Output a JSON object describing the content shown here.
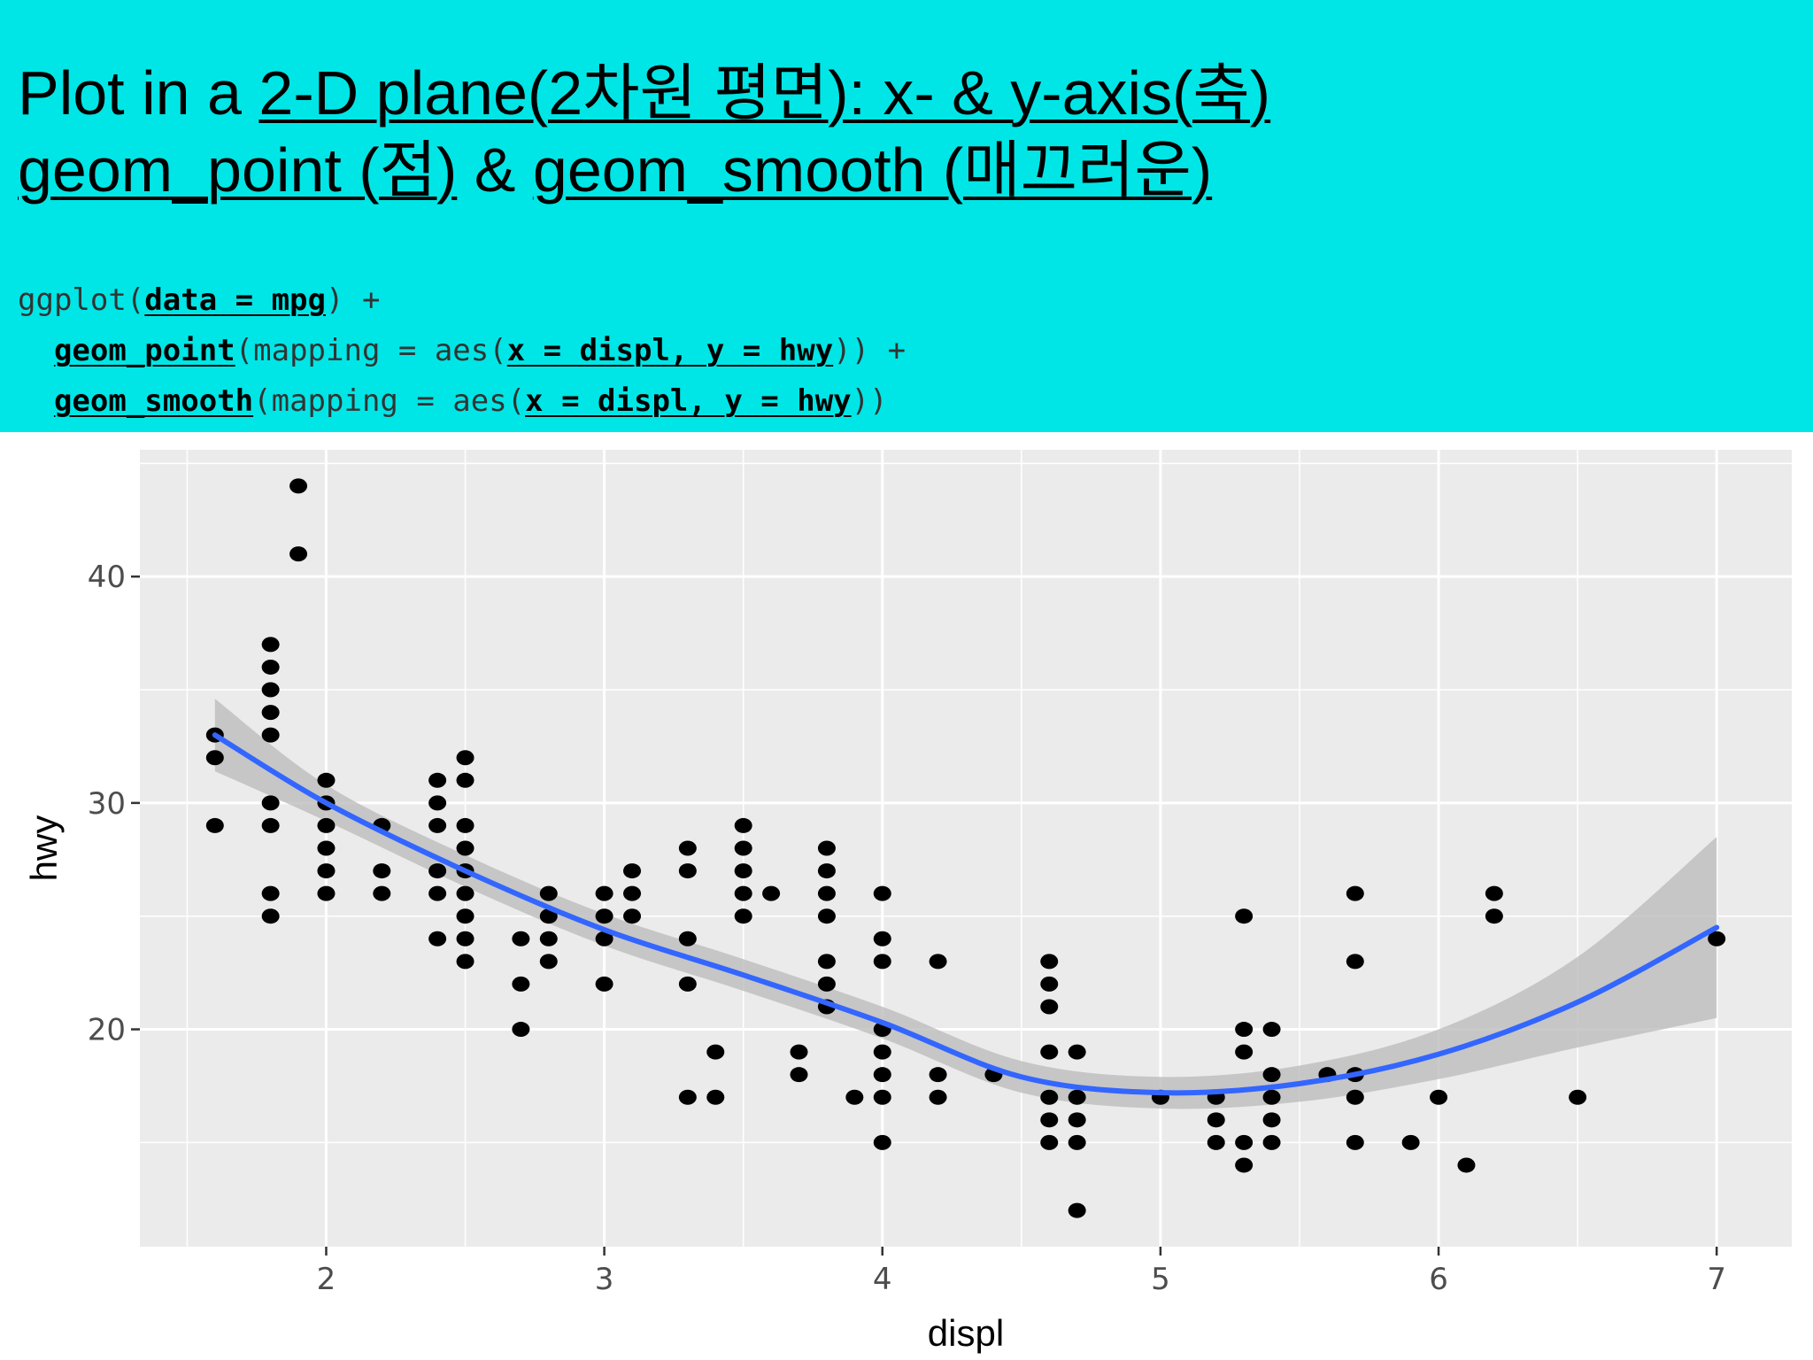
{
  "slide": {
    "title_line1": {
      "a": "Plot in a ",
      "b": "2-D plane(2차원 평면): x- & y-axis(축)"
    },
    "title_line2": {
      "a": "geom_point (점)",
      "b": " & ",
      "c": "geom_smooth (매끄러운)"
    },
    "code": {
      "l1a": "ggplot(",
      "l1b": "data = mpg",
      "l1c": ") +",
      "l2a": "  ",
      "l2b": "geom_point",
      "l2c": "(mapping = aes(",
      "l2d": "x = displ, y = hwy",
      "l2e": ")) +",
      "l3a": "  ",
      "l3b": "geom_smooth",
      "l3c": "(mapping = aes(",
      "l3d": "x = displ, y = hwy",
      "l3e": "))"
    }
  },
  "colors": {
    "header_bg": "#00e6e6",
    "panel_bg": "#ebebeb",
    "grid": "#ffffff",
    "points": "#000000",
    "smooth_line": "#3366ff",
    "confidence_band": "#bdbdbd"
  },
  "chart_data": {
    "type": "scatter",
    "xlabel": "displ",
    "ylabel": "hwy",
    "xlim": [
      1.33,
      7.27
    ],
    "ylim": [
      10.4,
      45.6
    ],
    "x_ticks": [
      2,
      3,
      4,
      5,
      6,
      7
    ],
    "y_ticks": [
      20,
      30,
      40
    ],
    "grid": true,
    "legend": "none",
    "points": [
      [
        1.6,
        33
      ],
      [
        1.6,
        32
      ],
      [
        1.6,
        29
      ],
      [
        1.8,
        37
      ],
      [
        1.8,
        36
      ],
      [
        1.8,
        35
      ],
      [
        1.8,
        34
      ],
      [
        1.8,
        33
      ],
      [
        1.8,
        30
      ],
      [
        1.8,
        29
      ],
      [
        1.8,
        26
      ],
      [
        1.8,
        25
      ],
      [
        1.9,
        44
      ],
      [
        1.9,
        41
      ],
      [
        2.0,
        31
      ],
      [
        2.0,
        30
      ],
      [
        2.0,
        29
      ],
      [
        2.0,
        28
      ],
      [
        2.0,
        27
      ],
      [
        2.0,
        26
      ],
      [
        2.2,
        29
      ],
      [
        2.2,
        27
      ],
      [
        2.2,
        26
      ],
      [
        2.4,
        31
      ],
      [
        2.4,
        30
      ],
      [
        2.4,
        29
      ],
      [
        2.4,
        27
      ],
      [
        2.4,
        26
      ],
      [
        2.4,
        24
      ],
      [
        2.5,
        32
      ],
      [
        2.5,
        31
      ],
      [
        2.5,
        29
      ],
      [
        2.5,
        28
      ],
      [
        2.5,
        27
      ],
      [
        2.5,
        26
      ],
      [
        2.5,
        25
      ],
      [
        2.5,
        24
      ],
      [
        2.5,
        23
      ],
      [
        2.7,
        24
      ],
      [
        2.7,
        22
      ],
      [
        2.7,
        20
      ],
      [
        2.8,
        26
      ],
      [
        2.8,
        25
      ],
      [
        2.8,
        24
      ],
      [
        2.8,
        23
      ],
      [
        3.0,
        26
      ],
      [
        3.0,
        25
      ],
      [
        3.0,
        24
      ],
      [
        3.0,
        22
      ],
      [
        3.1,
        27
      ],
      [
        3.1,
        26
      ],
      [
        3.1,
        25
      ],
      [
        3.3,
        28
      ],
      [
        3.3,
        27
      ],
      [
        3.3,
        24
      ],
      [
        3.3,
        22
      ],
      [
        3.3,
        17
      ],
      [
        3.4,
        19
      ],
      [
        3.4,
        17
      ],
      [
        3.5,
        29
      ],
      [
        3.5,
        28
      ],
      [
        3.5,
        27
      ],
      [
        3.5,
        26
      ],
      [
        3.5,
        25
      ],
      [
        3.6,
        26
      ],
      [
        3.7,
        19
      ],
      [
        3.7,
        18
      ],
      [
        3.8,
        28
      ],
      [
        3.8,
        27
      ],
      [
        3.8,
        26
      ],
      [
        3.8,
        25
      ],
      [
        3.8,
        23
      ],
      [
        3.8,
        22
      ],
      [
        3.8,
        21
      ],
      [
        3.9,
        17
      ],
      [
        4.0,
        26
      ],
      [
        4.0,
        24
      ],
      [
        4.0,
        23
      ],
      [
        4.0,
        20
      ],
      [
        4.0,
        19
      ],
      [
        4.0,
        18
      ],
      [
        4.0,
        17
      ],
      [
        4.0,
        15
      ],
      [
        4.2,
        23
      ],
      [
        4.2,
        18
      ],
      [
        4.2,
        17
      ],
      [
        4.4,
        18
      ],
      [
        4.6,
        23
      ],
      [
        4.6,
        22
      ],
      [
        4.6,
        21
      ],
      [
        4.6,
        19
      ],
      [
        4.6,
        17
      ],
      [
        4.6,
        16
      ],
      [
        4.6,
        15
      ],
      [
        4.7,
        19
      ],
      [
        4.7,
        17
      ],
      [
        4.7,
        16
      ],
      [
        4.7,
        15
      ],
      [
        4.7,
        12
      ],
      [
        5.0,
        17
      ],
      [
        5.2,
        17
      ],
      [
        5.2,
        16
      ],
      [
        5.2,
        15
      ],
      [
        5.3,
        25
      ],
      [
        5.3,
        20
      ],
      [
        5.3,
        19
      ],
      [
        5.3,
        15
      ],
      [
        5.3,
        14
      ],
      [
        5.4,
        20
      ],
      [
        5.4,
        18
      ],
      [
        5.4,
        17
      ],
      [
        5.4,
        16
      ],
      [
        5.4,
        15
      ],
      [
        5.6,
        18
      ],
      [
        5.7,
        26
      ],
      [
        5.7,
        23
      ],
      [
        5.7,
        18
      ],
      [
        5.7,
        17
      ],
      [
        5.7,
        15
      ],
      [
        5.9,
        15
      ],
      [
        6.0,
        17
      ],
      [
        6.1,
        14
      ],
      [
        6.2,
        26
      ],
      [
        6.2,
        25
      ],
      [
        6.5,
        17
      ],
      [
        7.0,
        24
      ]
    ],
    "smooth": {
      "x": [
        1.6,
        2.0,
        2.5,
        3.0,
        3.5,
        4.0,
        4.5,
        5.0,
        5.5,
        6.0,
        6.5,
        7.0
      ],
      "y": [
        33.0,
        30.0,
        27.0,
        24.4,
        22.4,
        20.3,
        17.9,
        17.2,
        17.6,
        18.9,
        21.2,
        24.5
      ],
      "ymin": [
        31.4,
        29.2,
        26.3,
        23.7,
        21.7,
        19.6,
        17.2,
        16.5,
        16.8,
        17.8,
        19.2,
        20.5
      ],
      "ymax": [
        34.6,
        30.8,
        27.7,
        25.1,
        23.1,
        21.0,
        18.6,
        17.9,
        18.4,
        20.0,
        23.2,
        28.5
      ]
    }
  }
}
